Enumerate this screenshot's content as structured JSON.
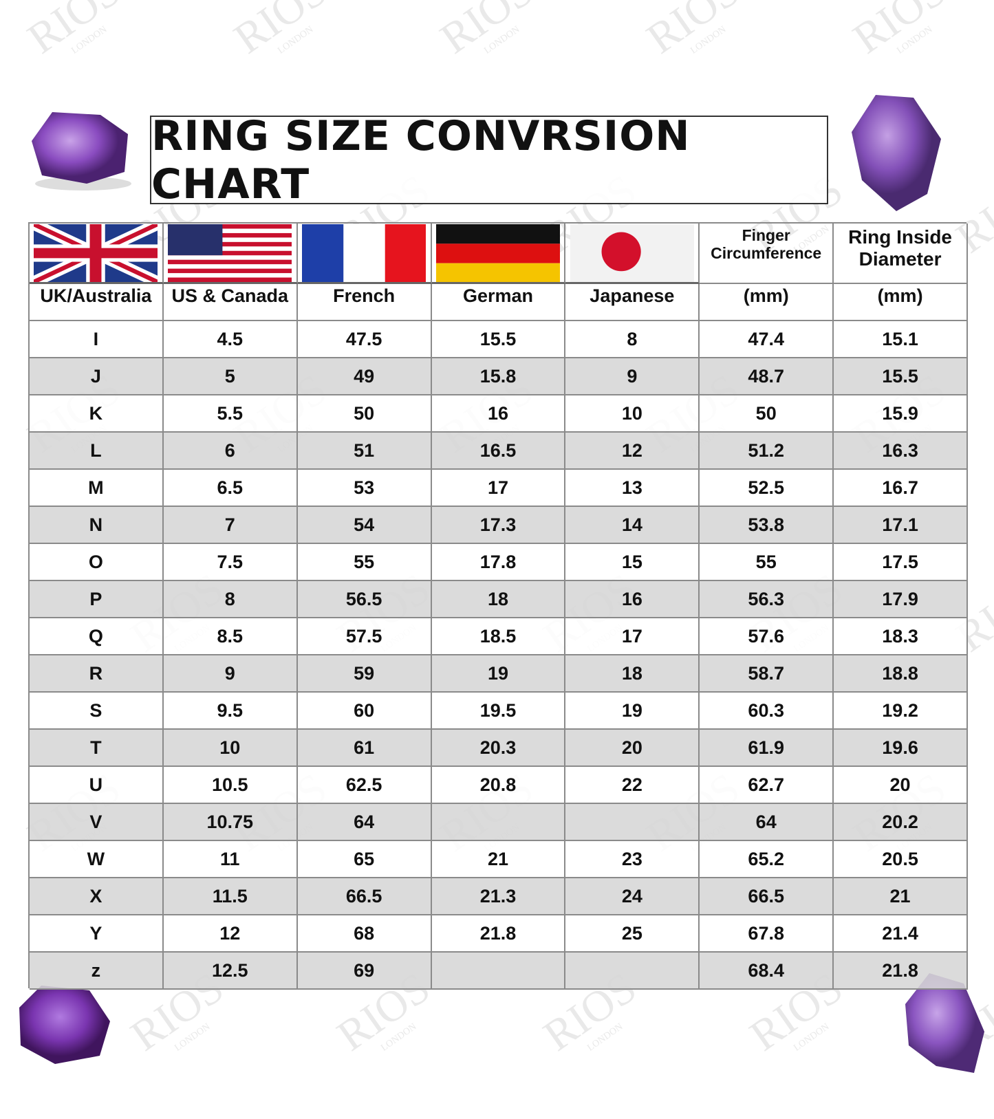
{
  "header": {
    "title": "RING SIZE CONVRSION CHART"
  },
  "watermark": {
    "brand": "RIOS",
    "city": "LONDON"
  },
  "table": {
    "flag_header": [
      "Finger Circumference",
      "Ring Inside Diameter"
    ],
    "header": [
      "UK/Australia",
      "US & Canada",
      "French",
      "German",
      "Japanese",
      "(mm)",
      "(mm)"
    ],
    "rows": [
      [
        "I",
        "4.5",
        "47.5",
        "15.5",
        "8",
        "47.4",
        "15.1"
      ],
      [
        "J",
        "5",
        "49",
        "15.8",
        "9",
        "48.7",
        "15.5"
      ],
      [
        "K",
        "5.5",
        "50",
        "16",
        "10",
        "50",
        "15.9"
      ],
      [
        "L",
        "6",
        "51",
        "16.5",
        "12",
        "51.2",
        "16.3"
      ],
      [
        "M",
        "6.5",
        "53",
        "17",
        "13",
        "52.5",
        "16.7"
      ],
      [
        "N",
        "7",
        "54",
        "17.3",
        "14",
        "53.8",
        "17.1"
      ],
      [
        "O",
        "7.5",
        "55",
        "17.8",
        "15",
        "55",
        "17.5"
      ],
      [
        "P",
        "8",
        "56.5",
        "18",
        "16",
        "56.3",
        "17.9"
      ],
      [
        "Q",
        "8.5",
        "57.5",
        "18.5",
        "17",
        "57.6",
        "18.3"
      ],
      [
        "R",
        "9",
        "59",
        "19",
        "18",
        "58.7",
        "18.8"
      ],
      [
        "S",
        "9.5",
        "60",
        "19.5",
        "19",
        "60.3",
        "19.2"
      ],
      [
        "T",
        "10",
        "61",
        "20.3",
        "20",
        "61.9",
        "19.6"
      ],
      [
        "U",
        "10.5",
        "62.5",
        "20.8",
        "22",
        "62.7",
        "20"
      ],
      [
        "V",
        "10.75",
        "64",
        null,
        null,
        "64",
        "20.2"
      ],
      [
        "W",
        "11",
        "65",
        "21",
        "23",
        "65.2",
        "20.5"
      ],
      [
        "X",
        "11.5",
        "66.5",
        "21.3",
        "24",
        "66.5",
        "21"
      ],
      [
        "Y",
        "12",
        "68",
        "21.8",
        "25",
        "67.8",
        "21.4"
      ],
      [
        "z",
        "12.5",
        "69",
        null,
        null,
        "68.4",
        "21.8"
      ]
    ]
  }
}
